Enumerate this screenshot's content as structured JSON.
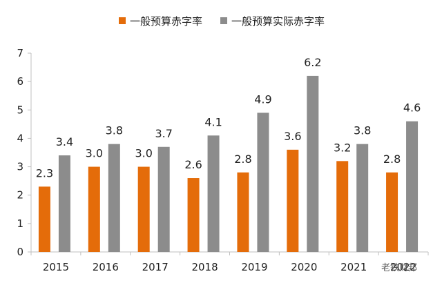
{
  "colors": {
    "series_budget": "#E46C0A",
    "series_actual": "#8C8C8C",
    "axis": "#BFBFBF"
  },
  "watermark": {
    "text": "老铁财邦"
  },
  "chart_data": {
    "type": "bar",
    "categories": [
      "2015",
      "2016",
      "2017",
      "2018",
      "2019",
      "2020",
      "2021",
      "2022"
    ],
    "series": [
      {
        "name": "一般预算赤字率",
        "values": [
          2.3,
          3.0,
          3.0,
          2.6,
          2.8,
          3.6,
          3.2,
          2.8
        ],
        "labels": [
          "2.3",
          "3.0",
          "3.0",
          "2.6",
          "2.8",
          "3.6",
          "3.2",
          "2.8"
        ]
      },
      {
        "name": "一般预算实际赤字率",
        "values": [
          3.4,
          3.8,
          3.7,
          4.1,
          4.9,
          6.2,
          3.8,
          4.6
        ],
        "labels": [
          "3.4",
          "3.8",
          "3.7",
          "4.1",
          "4.9",
          "6.2",
          "3.8",
          "4.6"
        ]
      }
    ],
    "y_ticks": [
      "0",
      "1",
      "2",
      "3",
      "4",
      "5",
      "6",
      "7"
    ],
    "ylim": [
      0,
      7
    ],
    "grid": false,
    "legend_position": "top-center"
  }
}
